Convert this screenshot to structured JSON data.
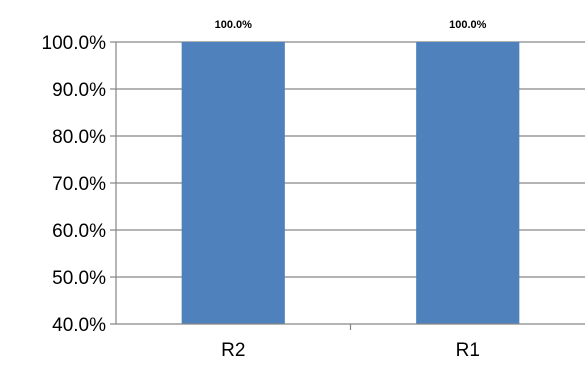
{
  "chart_data": {
    "type": "bar",
    "title": "",
    "xlabel": "",
    "ylabel": "",
    "categories": [
      "R2",
      "R1"
    ],
    "values": [
      100.0,
      100.0
    ],
    "data_labels": [
      "100.0%",
      "100.0%"
    ],
    "ylim": [
      40,
      100
    ],
    "yticks": [
      40,
      50,
      60,
      70,
      80,
      90,
      100
    ],
    "ytick_labels": [
      "40.0%",
      "50.0%",
      "60.0%",
      "70.0%",
      "80.0%",
      "90.0%",
      "100.0%"
    ],
    "grid": true,
    "legend": "none",
    "bar_color": "#4F81BD",
    "grid_color": "#868686"
  }
}
